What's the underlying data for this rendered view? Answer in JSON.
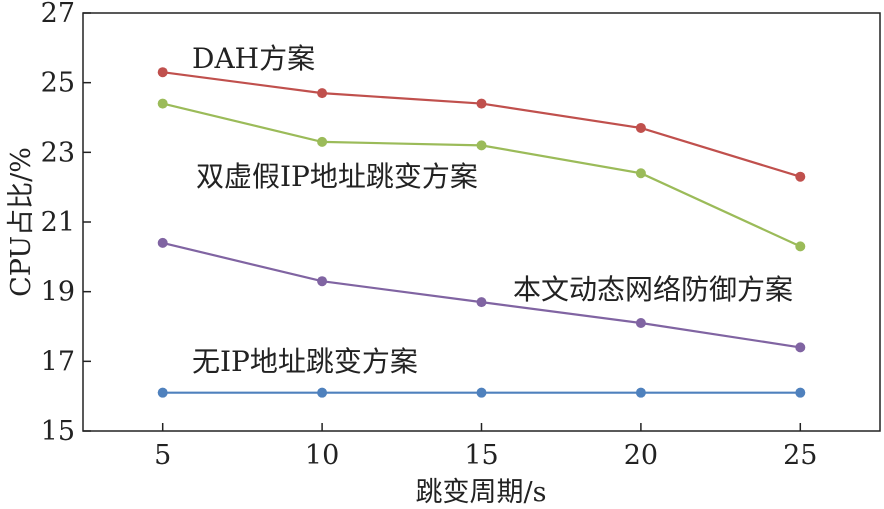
{
  "chart_data": {
    "type": "line",
    "title": "",
    "xlabel": "跳变周期/s",
    "ylabel": "CPU占比/%",
    "x": [
      5,
      10,
      15,
      20,
      25
    ],
    "xticks": [
      "5",
      "10",
      "15",
      "20",
      "25"
    ],
    "xlim": [
      2.5,
      27.5
    ],
    "ylim": [
      15,
      27
    ],
    "yticks": [
      "15",
      "17",
      "19",
      "21",
      "23",
      "25",
      "27"
    ],
    "grid": false,
    "series": [
      {
        "name": "DAH方案",
        "color": "#c0504d",
        "values": [
          25.3,
          24.7,
          24.4,
          23.7,
          22.3
        ]
      },
      {
        "name": "双虚假IP地址跳变方案",
        "color": "#9bbb59",
        "values": [
          24.4,
          23.3,
          23.2,
          22.4,
          20.3
        ]
      },
      {
        "name": "本文动态网络防御方案",
        "color": "#8064a2",
        "values": [
          20.4,
          19.3,
          18.7,
          18.1,
          17.4
        ]
      },
      {
        "name": "无IP地址跳变方案",
        "color": "#4f81bd",
        "values": [
          16.1,
          16.1,
          16.1,
          16.1,
          16.1
        ]
      }
    ]
  }
}
